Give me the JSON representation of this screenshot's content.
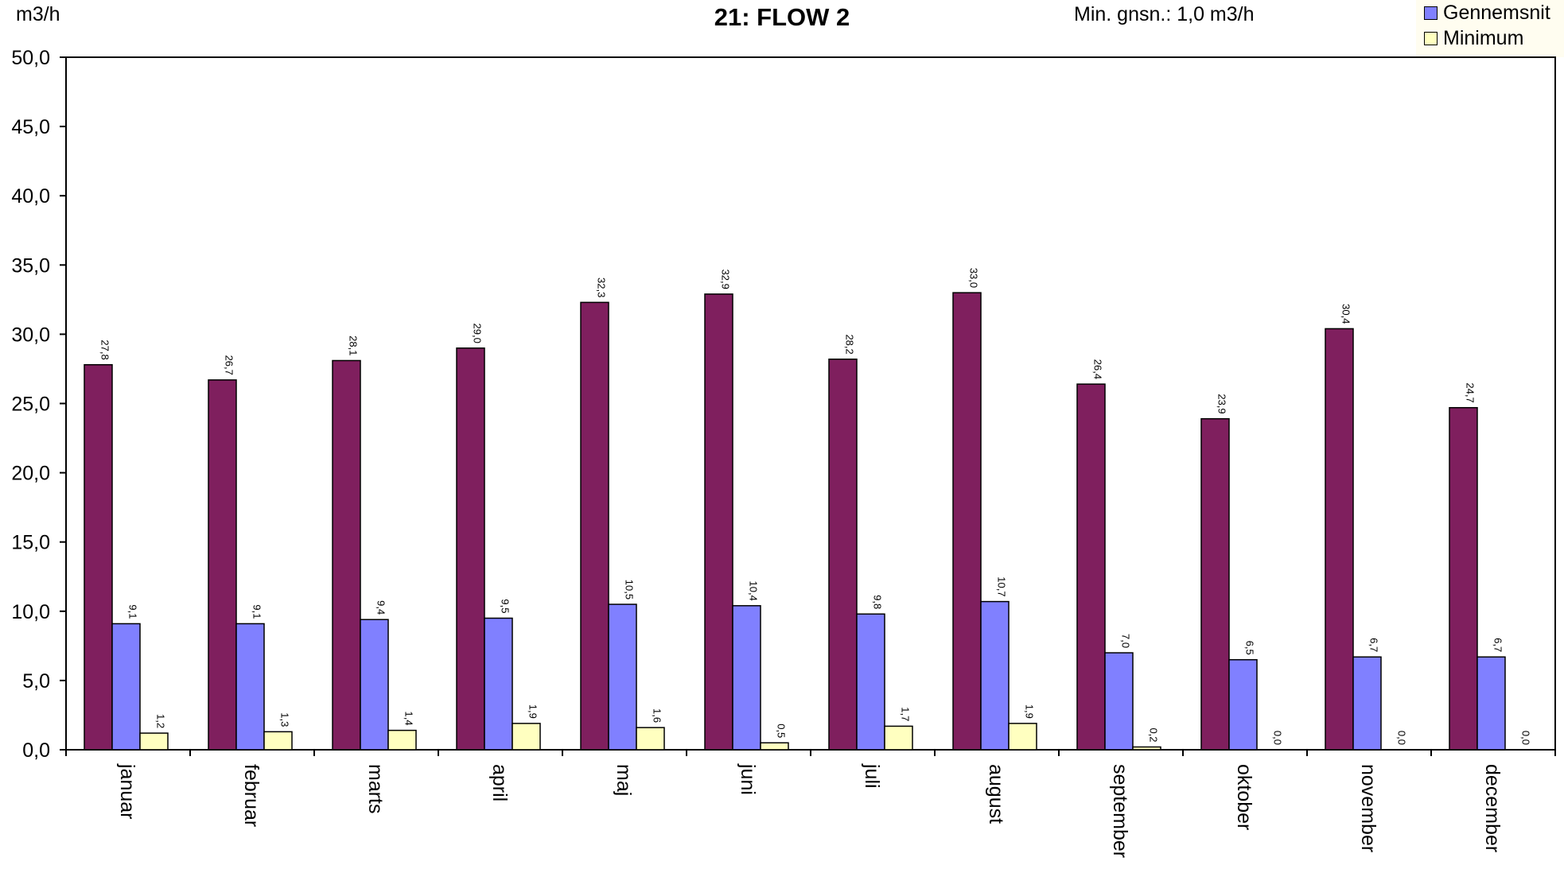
{
  "chart_data": {
    "type": "bar",
    "title": "21: FLOW 2",
    "subtitle": "Min. gnsn.: 1,0 m3/h",
    "ylabel": "m3/h",
    "xlabel": "",
    "ylim": [
      0,
      50
    ],
    "ytick_step": 5,
    "ytick_labels": [
      "0,0",
      "5,0",
      "10,0",
      "15,0",
      "20,0",
      "25,0",
      "30,0",
      "35,0",
      "40,0",
      "45,0",
      "50,0"
    ],
    "grid": false,
    "legend_position": "top-right",
    "categories": [
      "januar",
      "februar",
      "marts",
      "april",
      "maj",
      "juni",
      "juli",
      "august",
      "september",
      "oktober",
      "november",
      "december"
    ],
    "series": [
      {
        "color": "#7f1f5e",
        "values": [
          27.8,
          26.7,
          28.1,
          29.0,
          32.3,
          32.9,
          28.2,
          33.0,
          26.4,
          23.9,
          30.4,
          24.7
        ],
        "labels": [
          "27,8",
          "26,7",
          "28,1",
          "29,0",
          "32,3",
          "32,9",
          "28,2",
          "33,0",
          "26,4",
          "23,9",
          "30,4",
          "24,7"
        ]
      },
      {
        "name": "Gennemsnit",
        "color": "#8080ff",
        "values": [
          9.1,
          9.1,
          9.4,
          9.5,
          10.5,
          10.4,
          9.8,
          10.7,
          7.0,
          6.5,
          6.7,
          6.7
        ],
        "labels": [
          "9,1",
          "9,1",
          "9,4",
          "9,5",
          "10,5",
          "10,4",
          "9,8",
          "10,7",
          "7,0",
          "6,5",
          "6,7",
          "6,7"
        ]
      },
      {
        "name": "Minimum",
        "color": "#ffffc0",
        "values": [
          1.2,
          1.3,
          1.4,
          1.9,
          1.6,
          0.5,
          1.7,
          1.9,
          0.2,
          0.0,
          0.0,
          0.0
        ],
        "labels": [
          "1,2",
          "1,3",
          "1,4",
          "1,9",
          "1,6",
          "0,5",
          "1,7",
          "1,9",
          "0,2",
          "0,0",
          "0,0",
          "0,0"
        ]
      }
    ],
    "legend": [
      {
        "label": "Gennemsnit",
        "color": "#8080ff"
      },
      {
        "label": "Minimum",
        "color": "#ffffc0"
      }
    ]
  }
}
